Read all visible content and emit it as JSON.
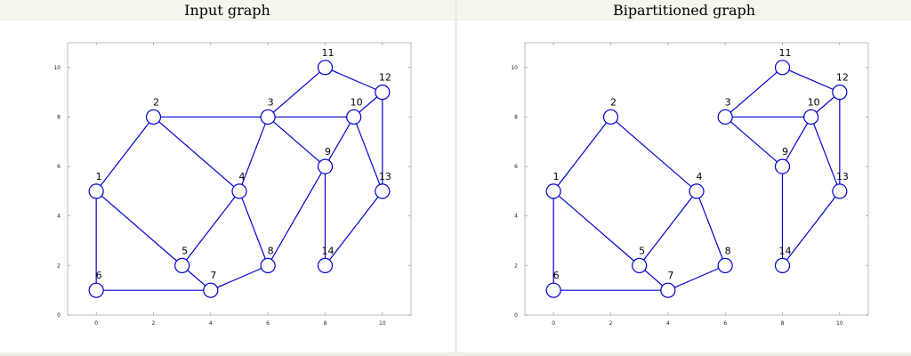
{
  "panels": [
    {
      "id": "left",
      "title": "Input graph",
      "nodes": [
        {
          "id": 1,
          "label": "1",
          "x": 0,
          "y": 5
        },
        {
          "id": 2,
          "label": "2",
          "x": 2,
          "y": 8
        },
        {
          "id": 3,
          "label": "3",
          "x": 6,
          "y": 8
        },
        {
          "id": 4,
          "label": "4",
          "x": 5,
          "y": 5
        },
        {
          "id": 5,
          "label": "5",
          "x": 3,
          "y": 2
        },
        {
          "id": 6,
          "label": "6",
          "x": 0,
          "y": 1
        },
        {
          "id": 7,
          "label": "7",
          "x": 4,
          "y": 1
        },
        {
          "id": 8,
          "label": "8",
          "x": 6,
          "y": 2
        },
        {
          "id": 9,
          "label": "9",
          "x": 8,
          "y": 6
        },
        {
          "id": 10,
          "label": "10",
          "x": 9,
          "y": 8
        },
        {
          "id": 11,
          "label": "11",
          "x": 8,
          "y": 10
        },
        {
          "id": 12,
          "label": "12",
          "x": 10,
          "y": 9
        },
        {
          "id": 13,
          "label": "13",
          "x": 10,
          "y": 5
        },
        {
          "id": 14,
          "label": "14",
          "x": 8,
          "y": 2
        }
      ],
      "edges": [
        [
          1,
          2
        ],
        [
          1,
          5
        ],
        [
          1,
          6
        ],
        [
          2,
          3
        ],
        [
          2,
          4
        ],
        [
          3,
          4
        ],
        [
          3,
          10
        ],
        [
          3,
          11
        ],
        [
          3,
          9
        ],
        [
          4,
          5
        ],
        [
          4,
          8
        ],
        [
          6,
          7
        ],
        [
          5,
          7
        ],
        [
          7,
          8
        ],
        [
          8,
          9
        ],
        [
          9,
          14
        ],
        [
          9,
          10
        ],
        [
          10,
          12
        ],
        [
          10,
          13
        ],
        [
          11,
          12
        ],
        [
          12,
          13
        ],
        [
          13,
          14
        ]
      ]
    },
    {
      "id": "right",
      "title": "Bipartitioned graph",
      "nodes": [
        {
          "id": 1,
          "label": "1",
          "x": 0,
          "y": 5
        },
        {
          "id": 2,
          "label": "2",
          "x": 2,
          "y": 8
        },
        {
          "id": 3,
          "label": "3",
          "x": 6,
          "y": 8
        },
        {
          "id": 4,
          "label": "4",
          "x": 5,
          "y": 5
        },
        {
          "id": 5,
          "label": "5",
          "x": 3,
          "y": 2
        },
        {
          "id": 6,
          "label": "6",
          "x": 0,
          "y": 1
        },
        {
          "id": 7,
          "label": "7",
          "x": 4,
          "y": 1
        },
        {
          "id": 8,
          "label": "8",
          "x": 6,
          "y": 2
        },
        {
          "id": 9,
          "label": "9",
          "x": 8,
          "y": 6
        },
        {
          "id": 10,
          "label": "10",
          "x": 9,
          "y": 8
        },
        {
          "id": 11,
          "label": "11",
          "x": 8,
          "y": 10
        },
        {
          "id": 12,
          "label": "12",
          "x": 10,
          "y": 9
        },
        {
          "id": 13,
          "label": "13",
          "x": 10,
          "y": 5
        },
        {
          "id": 14,
          "label": "14",
          "x": 8,
          "y": 2
        }
      ],
      "edges": [
        [
          1,
          2
        ],
        [
          1,
          5
        ],
        [
          1,
          6
        ],
        [
          2,
          4
        ],
        [
          4,
          5
        ],
        [
          4,
          8
        ],
        [
          6,
          7
        ],
        [
          5,
          7
        ],
        [
          7,
          8
        ],
        [
          3,
          11
        ],
        [
          3,
          10
        ],
        [
          3,
          9
        ],
        [
          9,
          10
        ],
        [
          9,
          14
        ],
        [
          10,
          12
        ],
        [
          10,
          13
        ],
        [
          11,
          12
        ],
        [
          12,
          13
        ],
        [
          13,
          14
        ]
      ]
    }
  ],
  "axes": {
    "x_ticks": [
      "0",
      "2",
      "4",
      "6",
      "8",
      "10"
    ],
    "y_ticks": [
      "0",
      "2",
      "4",
      "6",
      "8",
      "10"
    ],
    "xlim": [
      -1,
      11
    ],
    "ylim": [
      0,
      11
    ]
  },
  "colors": {
    "edge": "#0000d0",
    "node": "#0000d0",
    "frame": "#b0b0b0"
  }
}
